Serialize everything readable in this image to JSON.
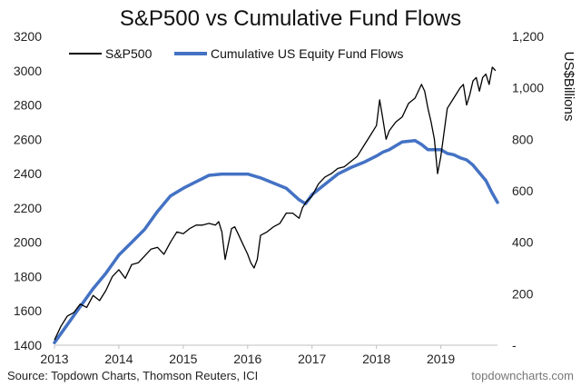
{
  "chart_data": {
    "type": "line",
    "title": "S&P500 vs Cumulative Fund Flows",
    "x_ticks": [
      "2013",
      "2014",
      "2015",
      "2016",
      "2017",
      "2018",
      "2019"
    ],
    "xlim": [
      2013.0,
      2019.88
    ],
    "left_axis": {
      "ylim": [
        1400,
        3200
      ],
      "ticks": [
        "1400",
        "1600",
        "1800",
        "2000",
        "2200",
        "2400",
        "2600",
        "2800",
        "3000",
        "3200"
      ]
    },
    "right_axis": {
      "ylim": [
        0,
        1200
      ],
      "label": "US$Billions",
      "ticks": [
        "-",
        "200",
        "400",
        "600",
        "800",
        "1,000",
        "1,200"
      ]
    },
    "series": [
      {
        "name": "S&P500",
        "axis": "left",
        "color": "#000000",
        "x": [
          2013.0,
          2013.1,
          2013.2,
          2013.3,
          2013.4,
          2013.5,
          2013.6,
          2013.7,
          2013.8,
          2013.9,
          2014.0,
          2014.1,
          2014.2,
          2014.3,
          2014.4,
          2014.5,
          2014.6,
          2014.7,
          2014.8,
          2014.9,
          2015.0,
          2015.1,
          2015.2,
          2015.3,
          2015.4,
          2015.5,
          2015.55,
          2015.6,
          2015.65,
          2015.7,
          2015.75,
          2015.8,
          2015.85,
          2015.9,
          2016.0,
          2016.05,
          2016.1,
          2016.15,
          2016.2,
          2016.3,
          2016.4,
          2016.5,
          2016.6,
          2016.7,
          2016.8,
          2016.85,
          2016.9,
          2017.0,
          2017.1,
          2017.2,
          2017.3,
          2017.4,
          2017.5,
          2017.6,
          2017.7,
          2017.8,
          2017.9,
          2018.0,
          2018.05,
          2018.1,
          2018.15,
          2018.2,
          2018.3,
          2018.4,
          2018.5,
          2018.6,
          2018.7,
          2018.75,
          2018.8,
          2018.85,
          2018.9,
          2018.95,
          2019.0,
          2019.1,
          2019.2,
          2019.3,
          2019.35,
          2019.4,
          2019.45,
          2019.5,
          2019.55,
          2019.6,
          2019.65,
          2019.7,
          2019.75,
          2019.8,
          2019.85
        ],
        "values": [
          1430,
          1510,
          1570,
          1590,
          1640,
          1620,
          1690,
          1660,
          1720,
          1800,
          1840,
          1790,
          1870,
          1880,
          1920,
          1960,
          1970,
          1930,
          2000,
          2060,
          2050,
          2080,
          2100,
          2100,
          2110,
          2100,
          2120,
          2060,
          1900,
          1990,
          2080,
          2090,
          2050,
          2010,
          1930,
          1880,
          1850,
          1900,
          2040,
          2060,
          2090,
          2110,
          2170,
          2170,
          2140,
          2200,
          2230,
          2270,
          2340,
          2380,
          2400,
          2430,
          2440,
          2470,
          2500,
          2560,
          2620,
          2680,
          2830,
          2720,
          2600,
          2650,
          2700,
          2730,
          2810,
          2840,
          2920,
          2880,
          2780,
          2700,
          2600,
          2400,
          2500,
          2780,
          2840,
          2900,
          2920,
          2800,
          2860,
          2940,
          2960,
          2880,
          2960,
          2980,
          2920,
          3020,
          3000
        ]
      },
      {
        "name": "Cumulative US Equity Fund Flows",
        "axis": "right",
        "color": "#4472C4",
        "x": [
          2013.0,
          2013.2,
          2013.4,
          2013.6,
          2013.8,
          2014.0,
          2014.2,
          2014.4,
          2014.6,
          2014.8,
          2015.0,
          2015.2,
          2015.4,
          2015.6,
          2015.8,
          2016.0,
          2016.2,
          2016.4,
          2016.6,
          2016.8,
          2016.9,
          2017.0,
          2017.2,
          2017.4,
          2017.6,
          2017.8,
          2018.0,
          2018.1,
          2018.2,
          2018.4,
          2018.6,
          2018.7,
          2018.8,
          2018.9,
          2019.0,
          2019.1,
          2019.2,
          2019.3,
          2019.4,
          2019.5,
          2019.6,
          2019.7,
          2019.8,
          2019.88
        ],
        "values": [
          10,
          80,
          150,
          220,
          280,
          350,
          400,
          450,
          520,
          580,
          610,
          635,
          660,
          665,
          665,
          665,
          650,
          630,
          610,
          565,
          550,
          585,
          625,
          665,
          690,
          710,
          735,
          750,
          760,
          790,
          795,
          780,
          760,
          760,
          760,
          745,
          740,
          728,
          720,
          700,
          670,
          640,
          590,
          555
        ]
      }
    ],
    "legend": [
      "S&P500",
      "Cumulative US Equity Fund Flows"
    ],
    "legend_position": "top-left",
    "grid": false
  },
  "footer": {
    "source": "Source: Topdown Charts, Thomson Reuters, ICI",
    "credit": "topdowncharts.com"
  }
}
